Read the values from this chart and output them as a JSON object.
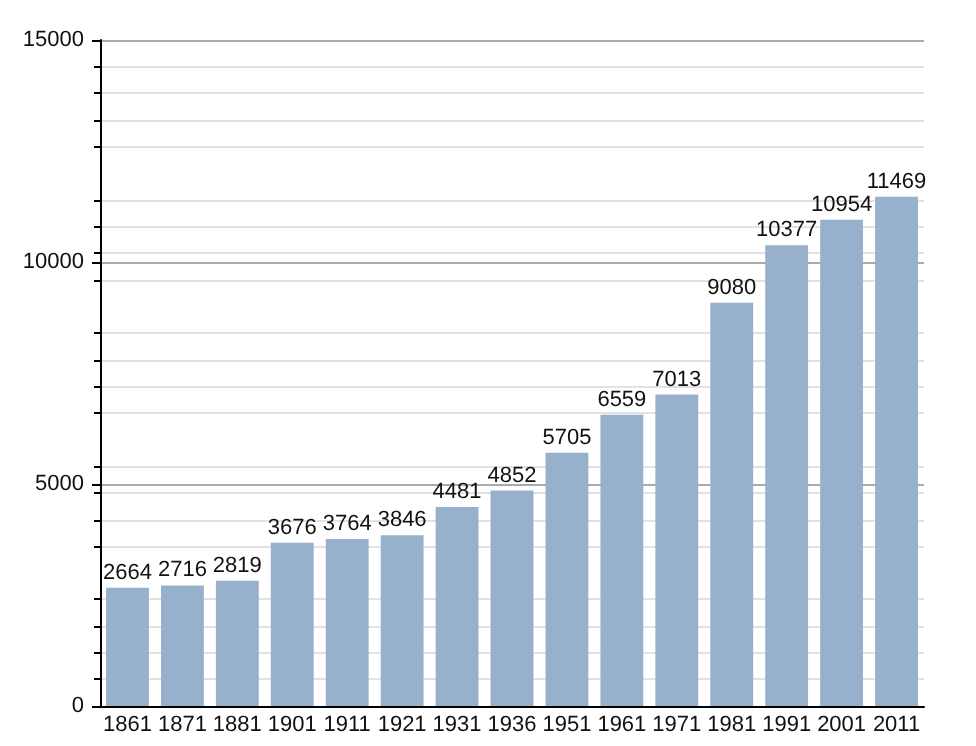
{
  "chart_data": {
    "type": "bar",
    "categories": [
      "1861",
      "1871",
      "1881",
      "1901",
      "1911",
      "1921",
      "1931",
      "1936",
      "1951",
      "1961",
      "1971",
      "1981",
      "1991",
      "2001",
      "2011"
    ],
    "values": [
      2664,
      2716,
      2819,
      3676,
      3764,
      3846,
      4481,
      4852,
      5705,
      6559,
      7013,
      9080,
      10377,
      10954,
      11469
    ],
    "color": "#97b0cc",
    "ylim": [
      0,
      15000
    ],
    "yticks": [
      0,
      5000,
      10000,
      15000
    ],
    "grid": "y",
    "data_labels": true
  }
}
